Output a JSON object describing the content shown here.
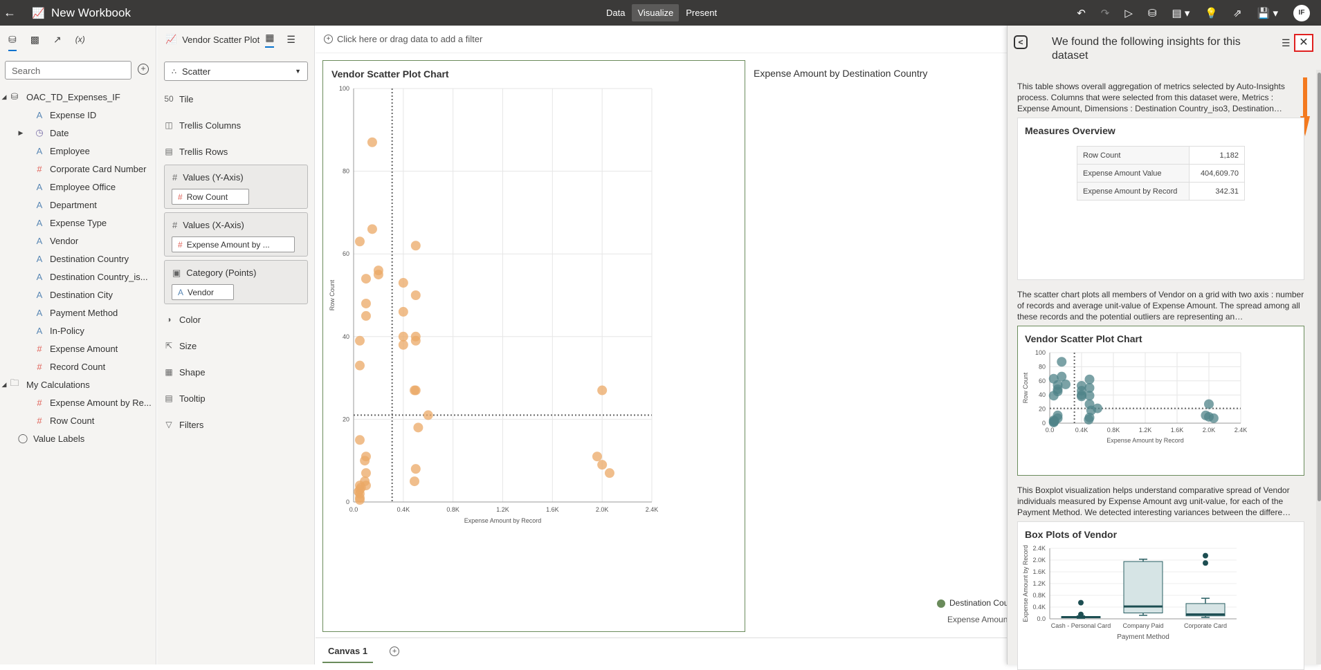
{
  "topbar": {
    "title": "New Workbook",
    "nav": [
      "Data",
      "Visualize",
      "Present"
    ],
    "active_nav": "Visualize",
    "avatar": "IF"
  },
  "left_panel": {
    "search_placeholder": "Search",
    "dataset": "OAC_TD_Expenses_IF",
    "items": [
      {
        "label": "Expense ID",
        "type": "attribute"
      },
      {
        "label": "Date",
        "type": "date"
      },
      {
        "label": "Employee",
        "type": "attribute"
      },
      {
        "label": "Corporate Card Number",
        "type": "measure"
      },
      {
        "label": "Employee Office",
        "type": "attribute"
      },
      {
        "label": "Department",
        "type": "attribute"
      },
      {
        "label": "Expense Type",
        "type": "attribute"
      },
      {
        "label": "Vendor",
        "type": "attribute"
      },
      {
        "label": "Destination Country",
        "type": "attribute"
      },
      {
        "label": "Destination Country_is...",
        "type": "attribute"
      },
      {
        "label": "Destination City",
        "type": "attribute"
      },
      {
        "label": "Payment Method",
        "type": "attribute"
      },
      {
        "label": "In-Policy",
        "type": "attribute"
      },
      {
        "label": "Expense Amount",
        "type": "measure"
      },
      {
        "label": "Record Count",
        "type": "measure"
      }
    ],
    "my_calculations": "My Calculations",
    "calc_items": [
      {
        "label": "Expense Amount by Re...",
        "type": "measure"
      },
      {
        "label": "Row Count",
        "type": "measure"
      }
    ],
    "value_labels": "Value Labels"
  },
  "grammar": {
    "tab_label": "Vendor Scatter Plot ...",
    "chart_type": "Scatter",
    "items_top": [
      "Tile",
      "Trellis Columns",
      "Trellis Rows"
    ],
    "y_axis": {
      "label": "Values (Y-Axis)",
      "chip": "Row Count"
    },
    "x_axis": {
      "label": "Values (X-Axis)",
      "chip": "Expense Amount by ..."
    },
    "category": {
      "label": "Category (Points)",
      "chip": "Vendor"
    },
    "items_bottom": [
      "Color",
      "Size",
      "Shape",
      "Tooltip",
      "Filters"
    ]
  },
  "canvas": {
    "filter_hint": "Click here or drag data to add a filter",
    "map_title": "Expense Amount by Destination Country",
    "map_legend": "Destination Cou",
    "map_sub": "Expense Amount",
    "tab": "Canvas 1"
  },
  "insights": {
    "title": "We found the following insights for this dataset",
    "desc1": "This table shows overall aggregation of metrics selected by Auto-Insights process. Columns that were selected from this dataset were, Metrics : Expense Amount, Dimensions : Destination Country_iso3, Destination…",
    "measures_title": "Measures Overview",
    "measures": [
      {
        "k": "Row Count",
        "v": "1,182"
      },
      {
        "k": "Expense Amount Value",
        "v": "404,609.70"
      },
      {
        "k": "Expense Amount by Record",
        "v": "342.31"
      }
    ],
    "desc2": "The scatter chart plots all members of Vendor on a grid with two axis : number of records and average unit-value of Expense Amount. The spread among all these records and the potential outliers are representing an…",
    "scatter_title": "Vendor Scatter Plot Chart",
    "desc3": "This Boxplot visualization helps understand comparative spread of Vendor individuals measured by Expense Amount avg unit-value, for each of the Payment Method. We detected interesting variances between the differe…",
    "box_title": "Box Plots of Vendor"
  },
  "chart_data": [
    {
      "type": "scatter",
      "title": "Vendor Scatter Plot Chart",
      "xlabel": "Expense Amount by Record",
      "ylabel": "Row Count",
      "xlim": [
        0,
        2400
      ],
      "ylim": [
        0,
        100
      ],
      "xticks": [
        "0.0",
        "0.4K",
        "0.8K",
        "1.2K",
        "1.6K",
        "2.0K",
        "2.4K"
      ],
      "yticks": [
        "0",
        "20",
        "40",
        "60",
        "80",
        "100"
      ],
      "ref_x": 310,
      "ref_y": 21,
      "color": "#eba865",
      "points": [
        [
          150,
          87
        ],
        [
          50,
          63
        ],
        [
          150,
          66
        ],
        [
          100,
          54
        ],
        [
          200,
          56
        ],
        [
          200,
          55
        ],
        [
          100,
          48
        ],
        [
          100,
          45
        ],
        [
          50,
          39
        ],
        [
          50,
          33
        ],
        [
          500,
          62
        ],
        [
          400,
          53
        ],
        [
          500,
          50
        ],
        [
          400,
          46
        ],
        [
          400,
          40
        ],
        [
          500,
          40
        ],
        [
          500,
          39
        ],
        [
          400,
          38
        ],
        [
          500,
          27
        ],
        [
          490,
          27
        ],
        [
          600,
          21
        ],
        [
          520,
          18
        ],
        [
          50,
          15
        ],
        [
          100,
          11
        ],
        [
          90,
          10
        ],
        [
          100,
          7
        ],
        [
          100,
          4
        ],
        [
          90,
          5
        ],
        [
          50,
          4
        ],
        [
          50,
          3
        ],
        [
          50,
          2
        ],
        [
          50,
          1
        ],
        [
          50,
          0.5
        ],
        [
          40,
          2.5
        ],
        [
          60,
          3.5
        ],
        [
          500,
          8
        ],
        [
          490,
          5
        ],
        [
          2000,
          27
        ],
        [
          1960,
          11
        ],
        [
          2000,
          9
        ],
        [
          2060,
          7
        ]
      ]
    },
    {
      "type": "scatter",
      "title": "Vendor Scatter Plot Chart",
      "xlabel": "Expense Amount by Record",
      "ylabel": "Row Count",
      "xlim": [
        0,
        2400
      ],
      "ylim": [
        0,
        100
      ],
      "xticks": [
        "0.0",
        "0.4K",
        "0.8K",
        "1.2K",
        "1.6K",
        "2.0K",
        "2.4K"
      ],
      "yticks": [
        "0",
        "20",
        "40",
        "60",
        "80",
        "100"
      ],
      "ref_x": 310,
      "ref_y": 21,
      "color": "#4f8388",
      "points": [
        [
          150,
          87
        ],
        [
          50,
          63
        ],
        [
          150,
          66
        ],
        [
          100,
          54
        ],
        [
          200,
          55
        ],
        [
          100,
          48
        ],
        [
          100,
          45
        ],
        [
          50,
          39
        ],
        [
          500,
          62
        ],
        [
          400,
          53
        ],
        [
          500,
          50
        ],
        [
          400,
          46
        ],
        [
          400,
          40
        ],
        [
          500,
          39
        ],
        [
          400,
          38
        ],
        [
          500,
          27
        ],
        [
          600,
          21
        ],
        [
          520,
          18
        ],
        [
          100,
          11
        ],
        [
          100,
          7
        ],
        [
          50,
          4
        ],
        [
          50,
          2
        ],
        [
          50,
          1
        ],
        [
          60,
          3
        ],
        [
          500,
          8
        ],
        [
          490,
          5
        ],
        [
          2000,
          27
        ],
        [
          1960,
          11
        ],
        [
          2000,
          9
        ],
        [
          2060,
          7
        ]
      ]
    },
    {
      "type": "box",
      "title": "Box Plots of Vendor",
      "xlabel": "Payment Method",
      "ylabel": "Expense Amount by Record",
      "ylim": [
        0,
        2400
      ],
      "yticks": [
        "0.0",
        "0.4K",
        "0.8K",
        "1.2K",
        "1.6K",
        "2.0K",
        "2.4K"
      ],
      "categories": [
        "Cash - Personal Card",
        "Company Paid",
        "Corporate Card"
      ],
      "boxes": [
        {
          "min": 20,
          "q1": 40,
          "median": 60,
          "q3": 80,
          "max": 100,
          "outliers": [
            150,
            550
          ]
        },
        {
          "min": 120,
          "q1": 200,
          "median": 420,
          "q3": 1950,
          "max": 2030,
          "outliers": []
        },
        {
          "min": 50,
          "q1": 100,
          "median": 150,
          "q3": 520,
          "max": 700,
          "outliers": [
            1900,
            2150
          ]
        }
      ]
    }
  ]
}
